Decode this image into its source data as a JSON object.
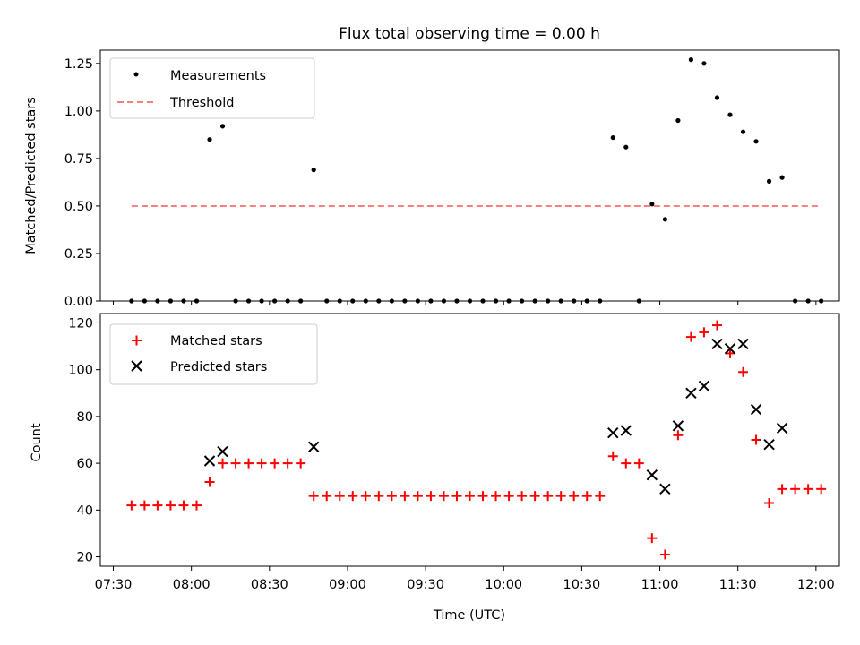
{
  "title": "Flux total observing time = 0.00 h",
  "chart_data": [
    {
      "type": "scatter",
      "panel": "top",
      "ylabel": "Matched/Predicted stars",
      "ylim": [
        0,
        1.32
      ],
      "yticks": [
        "0.00",
        "0.25",
        "0.50",
        "0.75",
        "1.00",
        "1.25"
      ],
      "ytick_values": [
        0,
        0.25,
        0.5,
        0.75,
        1.0,
        1.25
      ],
      "legend": {
        "placement": "upper-left",
        "entries": [
          "Measurements",
          "Threshold"
        ]
      },
      "colors": {
        "measurements": "#000000",
        "threshold": "#ff7f7f"
      },
      "series": [
        {
          "name": "Measurements",
          "x": [
            "07:37",
            "07:42",
            "07:47",
            "07:52",
            "07:57",
            "08:02",
            "08:07",
            "08:12",
            "08:17",
            "08:22",
            "08:27",
            "08:32",
            "08:37",
            "08:42",
            "08:47",
            "08:52",
            "08:57",
            "09:02",
            "09:07",
            "09:12",
            "09:17",
            "09:22",
            "09:27",
            "09:32",
            "09:37",
            "09:42",
            "09:47",
            "09:52",
            "09:57",
            "10:02",
            "10:07",
            "10:12",
            "10:17",
            "10:22",
            "10:27",
            "10:32",
            "10:37",
            "10:42",
            "10:47",
            "10:52",
            "10:57",
            "11:02",
            "11:07",
            "11:12",
            "11:17",
            "11:22",
            "11:27",
            "11:32",
            "11:37",
            "11:42",
            "11:47",
            "11:52",
            "11:57",
            "12:02"
          ],
          "y": [
            0,
            0,
            0,
            0,
            0,
            0,
            0.85,
            0.92,
            0,
            0,
            0,
            0,
            0,
            0,
            0.69,
            0,
            0,
            0,
            0,
            0,
            0,
            0,
            0,
            0,
            0,
            0,
            0,
            0,
            0,
            0,
            0,
            0,
            0,
            0,
            0,
            0,
            0,
            0.86,
            0.81,
            0,
            0.51,
            0.43,
            0.95,
            1.27,
            1.25,
            1.07,
            0.98,
            0.89,
            0.84,
            0.63,
            0.65,
            0,
            0,
            0
          ]
        },
        {
          "name": "Threshold",
          "x": [
            "07:37",
            "12:02"
          ],
          "y": [
            0.5,
            0.5
          ]
        }
      ]
    },
    {
      "type": "scatter",
      "panel": "bottom",
      "xlabel": "Time (UTC)",
      "ylabel": "Count",
      "xlim": [
        "07:25",
        "12:09"
      ],
      "ylim": [
        16,
        124
      ],
      "xticks": [
        "07:30",
        "08:00",
        "08:30",
        "09:00",
        "09:30",
        "10:00",
        "10:30",
        "11:00",
        "11:30",
        "12:00"
      ],
      "yticks": [
        "20",
        "40",
        "60",
        "80",
        "100",
        "120"
      ],
      "ytick_values": [
        20,
        40,
        60,
        80,
        100,
        120
      ],
      "legend": {
        "placement": "upper-left",
        "entries": [
          "Matched stars",
          "Predicted stars"
        ]
      },
      "colors": {
        "matched": "#ff0000",
        "predicted": "#000000"
      },
      "series": [
        {
          "name": "Matched stars",
          "x": [
            "07:37",
            "07:42",
            "07:47",
            "07:52",
            "07:57",
            "08:02",
            "08:07",
            "08:12",
            "08:17",
            "08:22",
            "08:27",
            "08:32",
            "08:37",
            "08:42",
            "08:47",
            "08:52",
            "08:57",
            "09:02",
            "09:07",
            "09:12",
            "09:17",
            "09:22",
            "09:27",
            "09:32",
            "09:37",
            "09:42",
            "09:47",
            "09:52",
            "09:57",
            "10:02",
            "10:07",
            "10:12",
            "10:17",
            "10:22",
            "10:27",
            "10:32",
            "10:37",
            "10:42",
            "10:47",
            "10:52",
            "10:57",
            "11:02",
            "11:07",
            "11:12",
            "11:17",
            "11:22",
            "11:27",
            "11:32",
            "11:37",
            "11:42",
            "11:47",
            "11:52",
            "11:57",
            "12:02"
          ],
          "y": [
            42,
            42,
            42,
            42,
            42,
            42,
            52,
            60,
            60,
            60,
            60,
            60,
            60,
            60,
            46,
            46,
            46,
            46,
            46,
            46,
            46,
            46,
            46,
            46,
            46,
            46,
            46,
            46,
            46,
            46,
            46,
            46,
            46,
            46,
            46,
            46,
            46,
            63,
            60,
            60,
            28,
            21,
            72,
            114,
            116,
            119,
            107,
            99,
            70,
            43,
            49,
            49,
            49,
            49
          ]
        },
        {
          "name": "Predicted stars",
          "x": [
            "08:07",
            "08:12",
            "08:47",
            "10:42",
            "10:47",
            "10:57",
            "11:02",
            "11:07",
            "11:12",
            "11:17",
            "11:22",
            "11:27",
            "11:32",
            "11:37",
            "11:42",
            "11:47"
          ],
          "y": [
            61,
            65,
            67,
            73,
            74,
            55,
            49,
            76,
            90,
            93,
            111,
            109,
            111,
            83,
            68,
            75
          ]
        }
      ]
    }
  ]
}
